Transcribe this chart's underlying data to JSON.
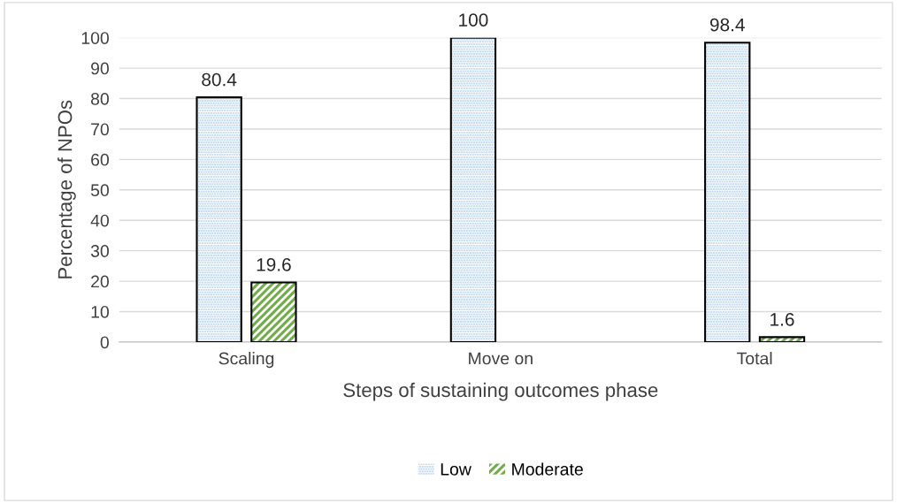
{
  "chart_data": {
    "type": "bar",
    "xlabel": "Steps of sustaining outcomes phase",
    "ylabel": "Percentage of NPOs",
    "categories": [
      "Scaling",
      "Move on",
      "Total"
    ],
    "series": [
      {
        "name": "Low",
        "color": "#bdd7ee",
        "values": [
          80.4,
          100,
          98.4
        ]
      },
      {
        "name": "Moderate",
        "color": "#70ad47",
        "values": [
          19.6,
          null,
          1.6
        ]
      }
    ],
    "ylim": [
      0,
      100
    ],
    "yticks": [
      0,
      10,
      20,
      30,
      40,
      50,
      60,
      70,
      80,
      90,
      100
    ],
    "grid": "y",
    "legend": "bottom",
    "data_labels": true
  }
}
